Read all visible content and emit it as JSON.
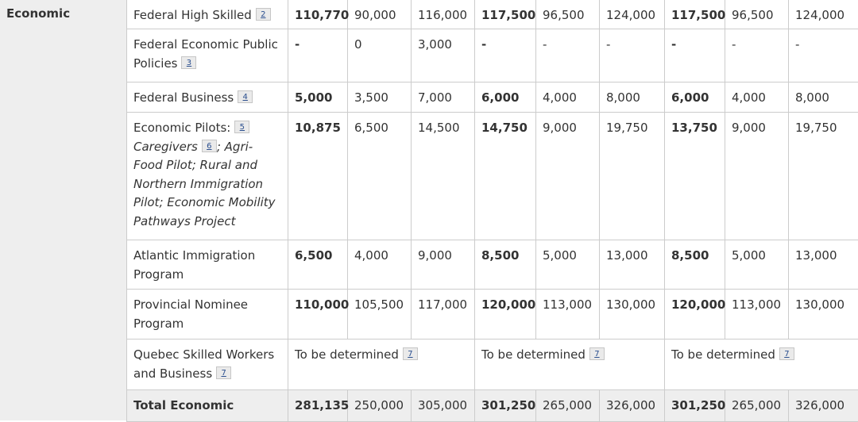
{
  "category": "Economic",
  "rows": [
    {
      "program": "Federal High Skilled",
      "note": "2",
      "values": [
        {
          "v": "110,770",
          "bold": true
        },
        {
          "v": "90,000"
        },
        {
          "v": "116,000"
        },
        {
          "v": "117,500",
          "bold": true
        },
        {
          "v": "96,500"
        },
        {
          "v": "124,000"
        },
        {
          "v": "117,500",
          "bold": true
        },
        {
          "v": "96,500"
        },
        {
          "v": "124,000"
        }
      ]
    },
    {
      "program": "Federal Economic Public Policies",
      "note": "3",
      "values": [
        {
          "v": "-",
          "bold": true
        },
        {
          "v": "0"
        },
        {
          "v": "3,000"
        },
        {
          "v": "-",
          "bold": true
        },
        {
          "v": "-"
        },
        {
          "v": "-"
        },
        {
          "v": "-",
          "bold": true
        },
        {
          "v": "-"
        },
        {
          "v": "-"
        }
      ]
    },
    {
      "program": "Federal Business",
      "note": "4",
      "values": [
        {
          "v": "5,000",
          "bold": true
        },
        {
          "v": "3,500"
        },
        {
          "v": "7,000"
        },
        {
          "v": "6,000",
          "bold": true
        },
        {
          "v": "4,000"
        },
        {
          "v": "8,000"
        },
        {
          "v": "6,000",
          "bold": true
        },
        {
          "v": "4,000"
        },
        {
          "v": "8,000"
        }
      ]
    },
    {
      "program": "Economic Pilots:",
      "note": "5",
      "sub_a": "Caregivers",
      "sub_note": "6",
      "sub_b": "; Agri-Food Pilot; Rural and Northern Immigration Pilot; Economic Mobility Pathways Project",
      "values": [
        {
          "v": "10,875",
          "bold": true
        },
        {
          "v": "6,500"
        },
        {
          "v": "14,500"
        },
        {
          "v": "14,750",
          "bold": true
        },
        {
          "v": "9,000"
        },
        {
          "v": "19,750"
        },
        {
          "v": "13,750",
          "bold": true
        },
        {
          "v": "9,000"
        },
        {
          "v": "19,750"
        }
      ]
    },
    {
      "program": "Atlantic Immigration Program",
      "note": "",
      "values": [
        {
          "v": "6,500",
          "bold": true
        },
        {
          "v": "4,000"
        },
        {
          "v": "9,000"
        },
        {
          "v": "8,500",
          "bold": true
        },
        {
          "v": "5,000"
        },
        {
          "v": "13,000"
        },
        {
          "v": "8,500",
          "bold": true
        },
        {
          "v": "5,000"
        },
        {
          "v": "13,000"
        }
      ]
    },
    {
      "program": "Provincial Nominee Program",
      "note": "",
      "values": [
        {
          "v": "110,000",
          "bold": true
        },
        {
          "v": "105,500"
        },
        {
          "v": "117,000"
        },
        {
          "v": "120,000",
          "bold": true
        },
        {
          "v": "113,000"
        },
        {
          "v": "130,000"
        },
        {
          "v": "120,000",
          "bold": true
        },
        {
          "v": "113,000"
        },
        {
          "v": "130,000"
        }
      ]
    }
  ],
  "quebec": {
    "program": "Quebec Skilled Workers and Business",
    "note": "7",
    "tbd": [
      "To be determined",
      "To be determined",
      "To be determined"
    ],
    "tbd_note": "7"
  },
  "total": {
    "label": "Total Economic",
    "values": [
      "281,135",
      "250,000",
      "305,000",
      "301,250",
      "265,000",
      "326,000",
      "301,250",
      "265,000",
      "326,000"
    ]
  }
}
